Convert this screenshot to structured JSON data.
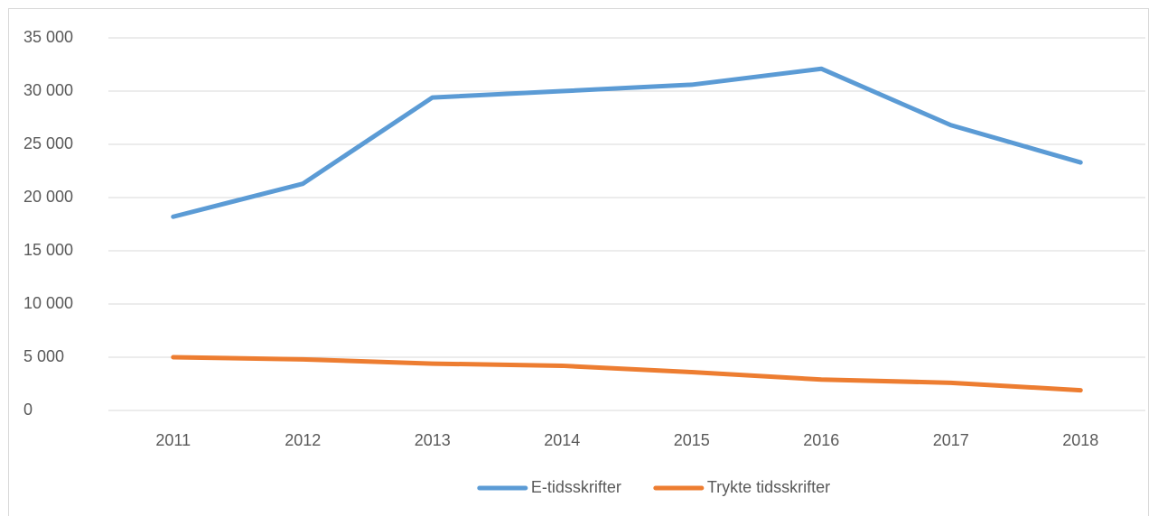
{
  "chart_data": {
    "type": "line",
    "categories": [
      "2011",
      "2012",
      "2013",
      "2014",
      "2015",
      "2016",
      "2017",
      "2018"
    ],
    "series": [
      {
        "name": "E-tidsskrifter",
        "color": "#5b9bd5",
        "values": [
          18200,
          21300,
          29400,
          30000,
          30600,
          32100,
          26800,
          23300
        ]
      },
      {
        "name": "Trykte tidsskrifter",
        "color": "#ed7d31",
        "values": [
          5000,
          4800,
          4400,
          4200,
          3600,
          2900,
          2600,
          1900
        ]
      }
    ],
    "ylim": [
      0,
      35000
    ],
    "yticks": [
      0,
      {
        "value": 5000,
        "label": "5 000"
      },
      {
        "value": 10000,
        "label": "10 000"
      },
      {
        "value": 15000,
        "label": "15 000"
      },
      {
        "value": 20000,
        "label": "20 000"
      },
      {
        "value": 25000,
        "label": "25 000"
      },
      {
        "value": 30000,
        "label": "30 000"
      },
      {
        "value": 35000,
        "label": "35 000"
      }
    ],
    "grid": true,
    "legend": "bottom"
  }
}
